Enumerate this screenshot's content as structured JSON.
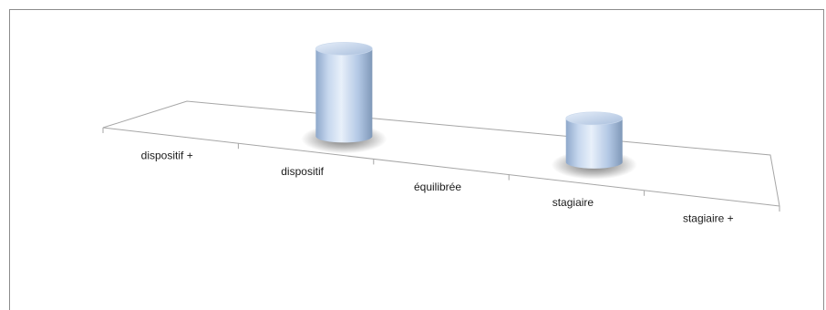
{
  "chart_data": {
    "type": "bar",
    "style": "3d-cylinder",
    "categories": [
      "dispositif +",
      "dispositif",
      "équilibrée",
      "stagiaire",
      "stagiaire +"
    ],
    "values": [
      0,
      2,
      0,
      1,
      0
    ],
    "title": "",
    "xlabel": "",
    "ylabel": "",
    "ylim": [
      0,
      2
    ],
    "grid": false,
    "legend": "none",
    "colors": {
      "bar": "#b8cde8",
      "bar_highlight": "#e8f0fa",
      "bar_shadow": "#7f98b8",
      "floor_line": "#a6a6a6"
    }
  }
}
